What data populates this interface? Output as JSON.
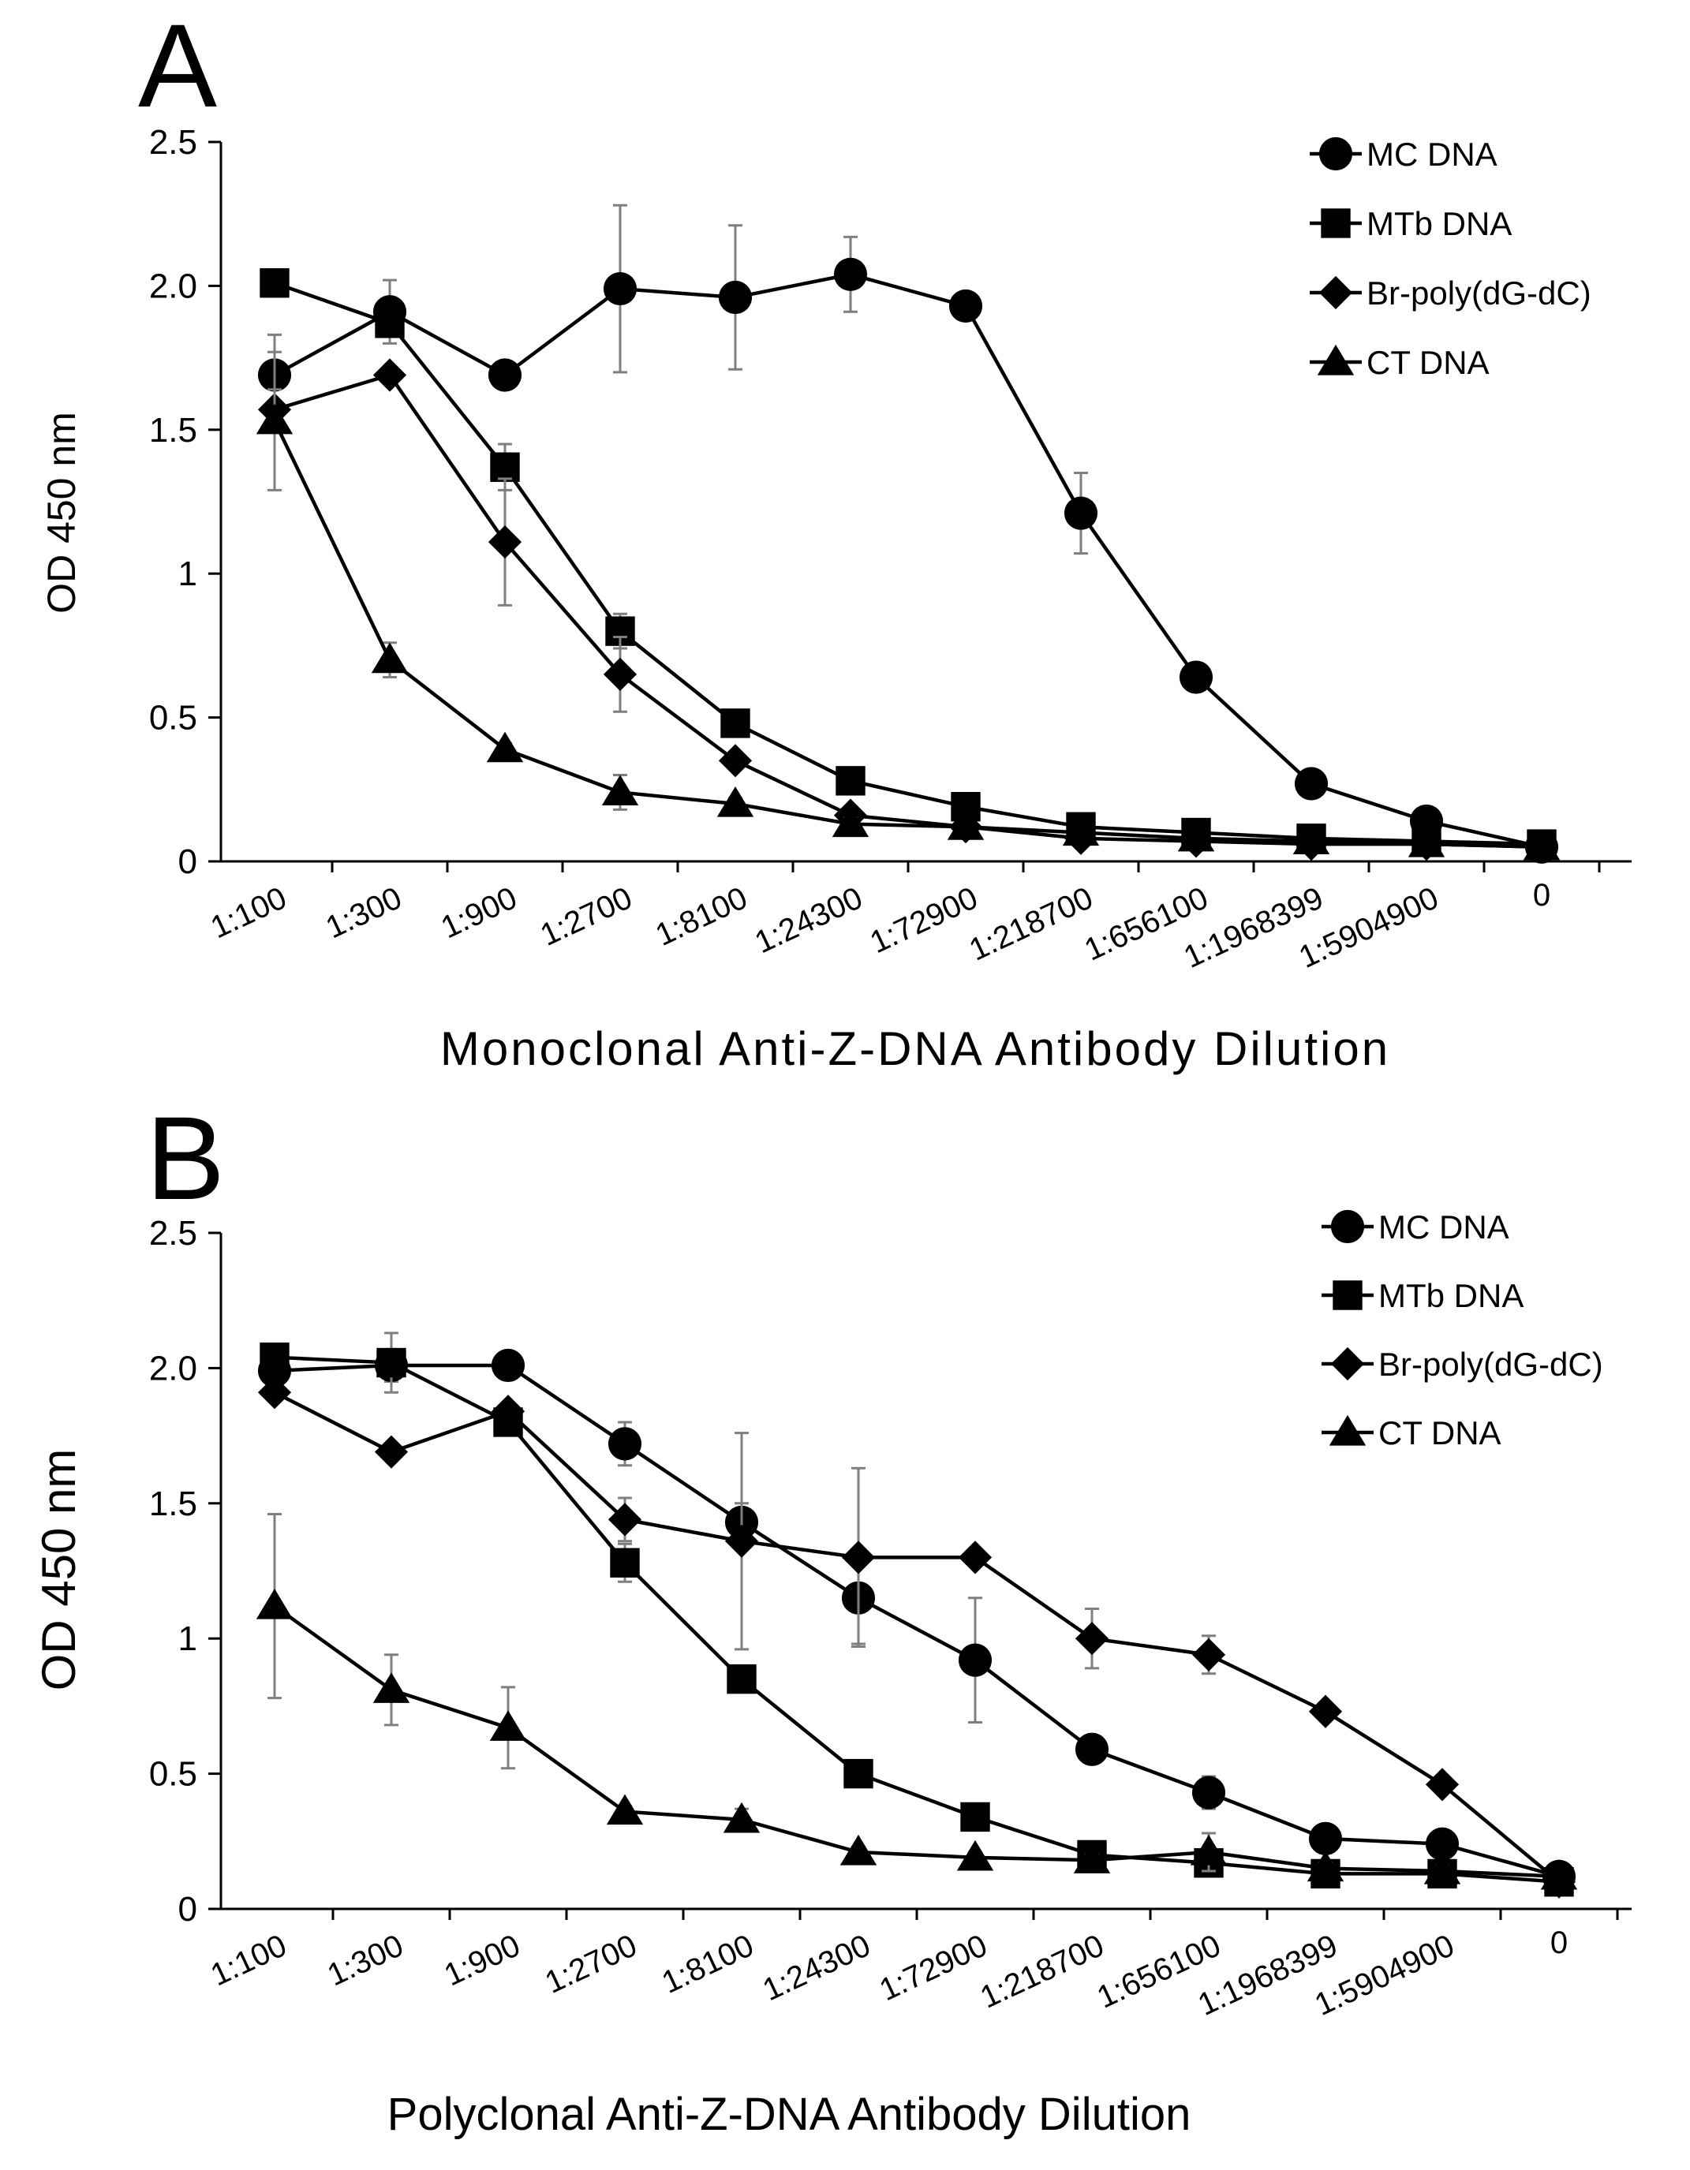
{
  "chart_data": [
    {
      "type": "line",
      "panel_label": "A",
      "title": "",
      "xlabel": "Monoclonal Anti-Z-DNA Antibody Dilution",
      "ylabel": "OD 450 nm",
      "ylim": [
        0,
        2.5
      ],
      "yticks": [
        "0",
        "0.5",
        "1",
        "1.5",
        "2.0",
        "2.5"
      ],
      "categories": [
        "1:100",
        "1:300",
        "1:900",
        "1:2700",
        "1:8100",
        "1:24300",
        "1:72900",
        "1:218700",
        "1:656100",
        "1:1968399",
        "1:5904900",
        "0"
      ],
      "legend_position": "top-right",
      "series": [
        {
          "name": "MC DNA",
          "marker": "circle",
          "values": [
            1.69,
            1.91,
            1.69,
            1.99,
            1.96,
            2.04,
            1.93,
            1.21,
            0.64,
            0.27,
            0.14,
            0.05
          ],
          "errors": [
            0.14,
            0.11,
            0.03,
            0.29,
            0.25,
            0.13,
            0.03,
            0.14,
            0.04,
            0.02,
            0.02,
            0.01
          ]
        },
        {
          "name": "MTb DNA",
          "marker": "square",
          "values": [
            2.01,
            1.87,
            1.37,
            0.8,
            0.48,
            0.28,
            0.19,
            0.12,
            0.1,
            0.08,
            0.07,
            0.06
          ],
          "errors": [
            0.02,
            0.04,
            0.08,
            0.06,
            0.04,
            0.03,
            0.02,
            0.01,
            0.01,
            0.01,
            0.01,
            0.01
          ]
        },
        {
          "name": "Br-poly(dG-dC)",
          "marker": "diamond",
          "values": [
            1.57,
            1.69,
            1.11,
            0.65,
            0.35,
            0.16,
            0.12,
            0.08,
            0.07,
            0.06,
            0.06,
            0.05
          ],
          "errors": [
            0.07,
            0.03,
            0.22,
            0.13,
            0.03,
            0.02,
            0.01,
            0.01,
            0.01,
            0.01,
            0.01,
            0.01
          ]
        },
        {
          "name": "CT DNA",
          "marker": "triangle",
          "values": [
            1.53,
            0.7,
            0.39,
            0.24,
            0.2,
            0.13,
            0.12,
            0.1,
            0.08,
            0.07,
            0.06,
            0.05
          ],
          "errors": [
            0.24,
            0.06,
            0.02,
            0.06,
            0.02,
            0.02,
            0.01,
            0.01,
            0.01,
            0.01,
            0.01,
            0.01
          ]
        }
      ]
    },
    {
      "type": "line",
      "panel_label": "B",
      "title": "",
      "xlabel": "Polyclonal Anti-Z-DNA Antibody Dilution",
      "ylabel": "OD 450 nm",
      "ylim": [
        0,
        2.5
      ],
      "yticks": [
        "0",
        "0.5",
        "1",
        "1.5",
        "2.0",
        "2.5"
      ],
      "categories": [
        "1:100",
        "1:300",
        "1:900",
        "1:2700",
        "1:8100",
        "1:24300",
        "1:72900",
        "1:218700",
        "1:656100",
        "1:1968399",
        "1:5904900",
        "0"
      ],
      "legend_position": "top-right",
      "series": [
        {
          "name": "MC DNA",
          "marker": "circle",
          "values": [
            1.99,
            2.01,
            2.01,
            1.72,
            1.43,
            1.15,
            0.92,
            0.59,
            0.43,
            0.26,
            0.24,
            0.12
          ],
          "errors": [
            0.03,
            0.06,
            0.02,
            0.08,
            0.07,
            0.17,
            0.23,
            0.02,
            0.06,
            0.03,
            0.05,
            0.02
          ]
        },
        {
          "name": "MTb DNA",
          "marker": "square",
          "values": [
            2.04,
            2.02,
            1.8,
            1.28,
            0.85,
            0.5,
            0.34,
            0.2,
            0.17,
            0.13,
            0.13,
            0.1
          ],
          "errors": [
            0.02,
            0.11,
            0.04,
            0.07,
            0.03,
            0.02,
            0.02,
            0.02,
            0.02,
            0.01,
            0.01,
            0.01
          ]
        },
        {
          "name": "Br-poly(dG-dC)",
          "marker": "diamond",
          "values": [
            1.91,
            1.69,
            1.84,
            1.44,
            1.36,
            1.3,
            1.3,
            1.0,
            0.94,
            0.73,
            0.46,
            0.1
          ],
          "errors": [
            0.02,
            0.02,
            0.03,
            0.08,
            0.4,
            0.33,
            0.02,
            0.11,
            0.07,
            0.02,
            0.02,
            0.01
          ]
        },
        {
          "name": "CT DNA",
          "marker": "triangle",
          "values": [
            1.12,
            0.81,
            0.67,
            0.36,
            0.33,
            0.21,
            0.19,
            0.18,
            0.21,
            0.15,
            0.14,
            0.12
          ],
          "errors": [
            0.34,
            0.13,
            0.15,
            0.02,
            0.04,
            0.02,
            0.02,
            0.02,
            0.07,
            0.02,
            0.02,
            0.01
          ]
        }
      ]
    }
  ]
}
